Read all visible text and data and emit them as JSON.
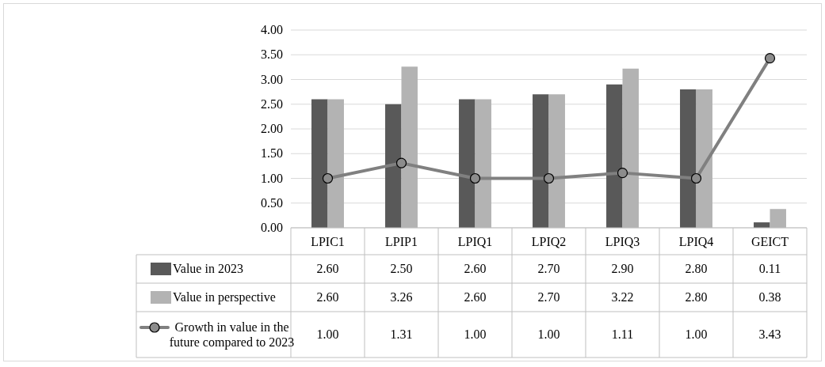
{
  "chart_data": {
    "type": "bar",
    "categories": [
      "LPIC1",
      "LPIP1",
      "LPIQ1",
      "LPIQ2",
      "LPIQ3",
      "LPIQ4",
      "GEICT"
    ],
    "series": [
      {
        "name": "Value in 2023",
        "color": "#595959",
        "values": [
          2.6,
          2.5,
          2.6,
          2.7,
          2.9,
          2.8,
          0.11
        ],
        "value_labels": [
          "2.60",
          "2.50",
          "2.60",
          "2.70",
          "2.90",
          "2.80",
          "0.11"
        ]
      },
      {
        "name": "Value in perspective",
        "color": "#b3b3b3",
        "values": [
          2.6,
          3.26,
          2.6,
          2.7,
          3.22,
          2.8,
          0.38
        ],
        "value_labels": [
          "2.60",
          "3.26",
          "2.60",
          "2.70",
          "3.22",
          "2.80",
          "0.38"
        ]
      },
      {
        "name": "Growth in value in the future compared to 2023",
        "type": "line",
        "color": "#808080",
        "values": [
          1.0,
          1.31,
          1.0,
          1.0,
          1.11,
          1.0,
          3.43
        ],
        "value_labels": [
          "1.00",
          "1.31",
          "1.00",
          "1.00",
          "1.11",
          "1.00",
          "3.43"
        ]
      }
    ],
    "ylim": [
      0,
      4
    ],
    "yticks": [
      {
        "value": 0,
        "label": "0.00"
      },
      {
        "value": 0.5,
        "label": "0.50"
      },
      {
        "value": 1,
        "label": "1.00"
      },
      {
        "value": 1.5,
        "label": "1.50"
      },
      {
        "value": 2,
        "label": "2.00"
      },
      {
        "value": 2.5,
        "label": "2.50"
      },
      {
        "value": 3,
        "label": "3.00"
      },
      {
        "value": 3.5,
        "label": "3.50"
      },
      {
        "value": 4,
        "label": "4.00"
      }
    ],
    "legend": "bottom",
    "marker": "circle",
    "grid": true
  }
}
